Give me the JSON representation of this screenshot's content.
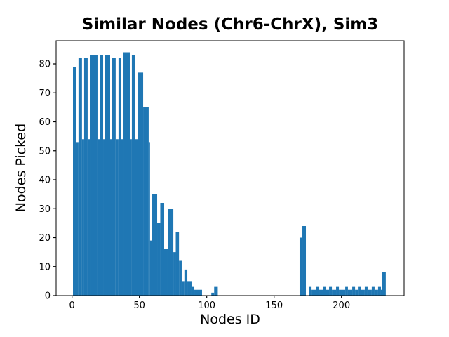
{
  "figure": {
    "background": "#ffffff"
  },
  "chart_data": {
    "type": "bar",
    "title": "Similar Nodes (Chr6-ChrX), Sim3",
    "xlabel": "Nodes ID",
    "ylabel": "Nodes Picked",
    "xlim": [
      -11.8,
      246.5
    ],
    "ylim": [
      0,
      88
    ],
    "xticks": [
      0,
      50,
      100,
      150,
      200
    ],
    "yticks": [
      0,
      10,
      20,
      30,
      40,
      50,
      60,
      70,
      80
    ],
    "grid": false,
    "legend": null,
    "bar_color": "#1f77b4",
    "axis_color": "#000000",
    "bars": [
      {
        "x0": 0.7,
        "x1": 3.3,
        "h": 79
      },
      {
        "x0": 3.3,
        "x1": 4.8,
        "h": 53
      },
      {
        "x0": 4.8,
        "x1": 7.4,
        "h": 82
      },
      {
        "x0": 7.4,
        "x1": 9.0,
        "h": 54
      },
      {
        "x0": 9.0,
        "x1": 11.6,
        "h": 82
      },
      {
        "x0": 11.6,
        "x1": 13.2,
        "h": 54
      },
      {
        "x0": 13.2,
        "x1": 18.9,
        "h": 83
      },
      {
        "x0": 18.9,
        "x1": 20.5,
        "h": 54
      },
      {
        "x0": 20.5,
        "x1": 23.1,
        "h": 83
      },
      {
        "x0": 23.1,
        "x1": 24.6,
        "h": 54
      },
      {
        "x0": 24.6,
        "x1": 28.3,
        "h": 83
      },
      {
        "x0": 28.3,
        "x1": 29.8,
        "h": 54
      },
      {
        "x0": 29.8,
        "x1": 32.4,
        "h": 82
      },
      {
        "x0": 32.4,
        "x1": 34.5,
        "h": 54
      },
      {
        "x0": 34.5,
        "x1": 36.6,
        "h": 82
      },
      {
        "x0": 36.6,
        "x1": 38.2,
        "h": 54
      },
      {
        "x0": 38.2,
        "x1": 42.9,
        "h": 84
      },
      {
        "x0": 42.9,
        "x1": 44.4,
        "h": 54
      },
      {
        "x0": 44.4,
        "x1": 47.0,
        "h": 83
      },
      {
        "x0": 47.0,
        "x1": 49.1,
        "h": 54
      },
      {
        "x0": 49.1,
        "x1": 52.8,
        "h": 77
      },
      {
        "x0": 52.8,
        "x1": 56.9,
        "h": 65
      },
      {
        "x0": 56.9,
        "x1": 57.9,
        "h": 53
      },
      {
        "x0": 57.9,
        "x1": 59.3,
        "h": 19
      },
      {
        "x0": 59.3,
        "x1": 63.2,
        "h": 35
      },
      {
        "x0": 63.2,
        "x1": 65.5,
        "h": 25
      },
      {
        "x0": 65.5,
        "x1": 68.4,
        "h": 32
      },
      {
        "x0": 68.4,
        "x1": 71.0,
        "h": 16
      },
      {
        "x0": 71.0,
        "x1": 75.2,
        "h": 30
      },
      {
        "x0": 75.2,
        "x1": 77.0,
        "h": 15
      },
      {
        "x0": 77.0,
        "x1": 79.4,
        "h": 22
      },
      {
        "x0": 79.4,
        "x1": 81.4,
        "h": 12
      },
      {
        "x0": 81.4,
        "x1": 83.4,
        "h": 5
      },
      {
        "x0": 83.4,
        "x1": 85.6,
        "h": 9
      },
      {
        "x0": 85.6,
        "x1": 88.7,
        "h": 5
      },
      {
        "x0": 88.7,
        "x1": 90.8,
        "h": 3
      },
      {
        "x0": 90.8,
        "x1": 96.5,
        "h": 2
      },
      {
        "x0": 103.4,
        "x1": 105.5,
        "h": 1
      },
      {
        "x0": 105.5,
        "x1": 108.2,
        "h": 3
      },
      {
        "x0": 168.9,
        "x1": 171.0,
        "h": 20
      },
      {
        "x0": 171.0,
        "x1": 173.6,
        "h": 24
      },
      {
        "x0": 175.7,
        "x1": 177.8,
        "h": 3
      },
      {
        "x0": 177.8,
        "x1": 180.9,
        "h": 2
      },
      {
        "x0": 180.9,
        "x1": 183.5,
        "h": 3
      },
      {
        "x0": 183.5,
        "x1": 186.1,
        "h": 2
      },
      {
        "x0": 186.1,
        "x1": 188.2,
        "h": 3
      },
      {
        "x0": 188.2,
        "x1": 190.8,
        "h": 2
      },
      {
        "x0": 190.8,
        "x1": 192.9,
        "h": 3
      },
      {
        "x0": 192.9,
        "x1": 196.0,
        "h": 2
      },
      {
        "x0": 196.0,
        "x1": 198.1,
        "h": 3
      },
      {
        "x0": 198.1,
        "x1": 202.8,
        "h": 2
      },
      {
        "x0": 202.8,
        "x1": 204.8,
        "h": 3
      },
      {
        "x0": 204.8,
        "x1": 208.0,
        "h": 2
      },
      {
        "x0": 208.0,
        "x1": 210.1,
        "h": 3
      },
      {
        "x0": 210.1,
        "x1": 212.7,
        "h": 2
      },
      {
        "x0": 212.7,
        "x1": 214.7,
        "h": 3
      },
      {
        "x0": 214.7,
        "x1": 217.3,
        "h": 2
      },
      {
        "x0": 217.3,
        "x1": 219.4,
        "h": 3
      },
      {
        "x0": 219.4,
        "x1": 222.5,
        "h": 2
      },
      {
        "x0": 222.5,
        "x1": 224.6,
        "h": 3
      },
      {
        "x0": 224.6,
        "x1": 227.2,
        "h": 2
      },
      {
        "x0": 227.2,
        "x1": 229.3,
        "h": 3
      },
      {
        "x0": 229.3,
        "x1": 230.3,
        "h": 2
      },
      {
        "x0": 230.3,
        "x1": 232.9,
        "h": 8
      }
    ]
  }
}
